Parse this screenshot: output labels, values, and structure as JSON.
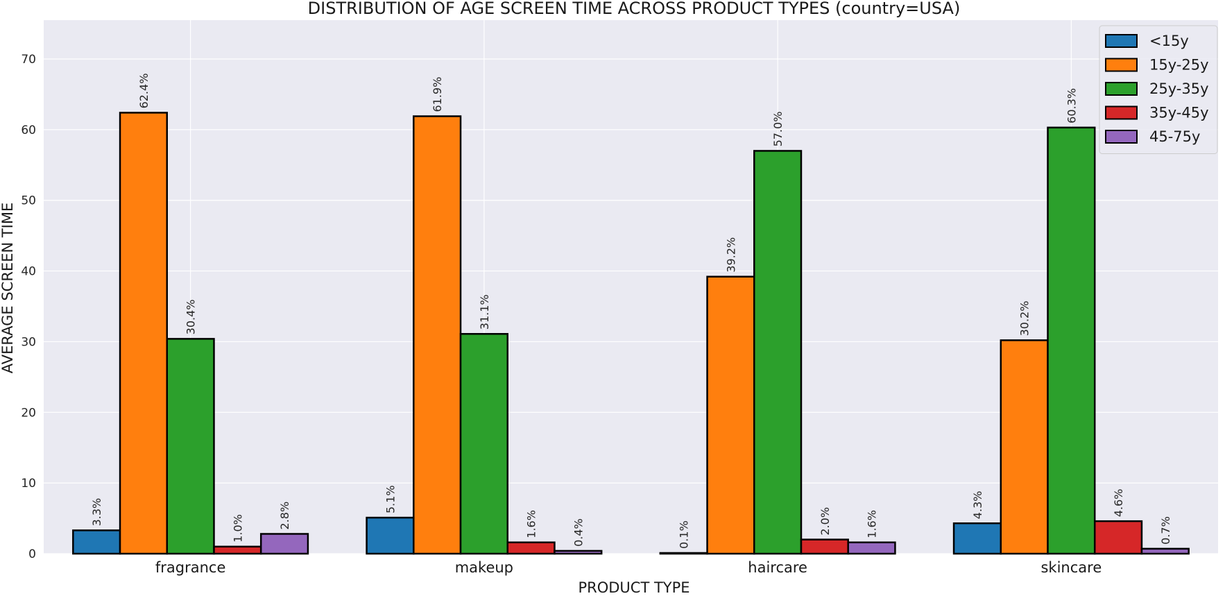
{
  "chart_data": {
    "type": "bar",
    "title": "DISTRIBUTION OF AGE SCREEN TIME ACROSS PRODUCT TYPES (country=USA)",
    "xlabel": "PRODUCT TYPE",
    "ylabel": "AVERAGE SCREEN TIME",
    "categories": [
      "fragrance",
      "makeup",
      "haircare",
      "skincare"
    ],
    "ylim": [
      0,
      75.5
    ],
    "yticks": [
      0,
      10,
      20,
      30,
      40,
      50,
      60,
      70
    ],
    "grid": true,
    "legend_position": "top-right",
    "value_format_suffix": "%",
    "series": [
      {
        "name": "<15y",
        "color": "#1f77b4",
        "values": [
          3.3,
          5.1,
          0.1,
          4.3
        ]
      },
      {
        "name": "15y-25y",
        "color": "#ff7f0e",
        "values": [
          62.4,
          61.9,
          39.2,
          30.2
        ]
      },
      {
        "name": "25y-35y",
        "color": "#2ca02c",
        "values": [
          30.4,
          31.1,
          57.0,
          60.3
        ]
      },
      {
        "name": "35y-45y",
        "color": "#d62728",
        "values": [
          1.0,
          1.6,
          2.0,
          4.6
        ]
      },
      {
        "name": "45-75y",
        "color": "#9467bd",
        "values": [
          2.8,
          0.4,
          1.6,
          0.7
        ]
      }
    ],
    "colors": {
      "plot_background": "#eaeaf2",
      "grid": "#ffffff",
      "bar_edge": "#000000"
    }
  }
}
